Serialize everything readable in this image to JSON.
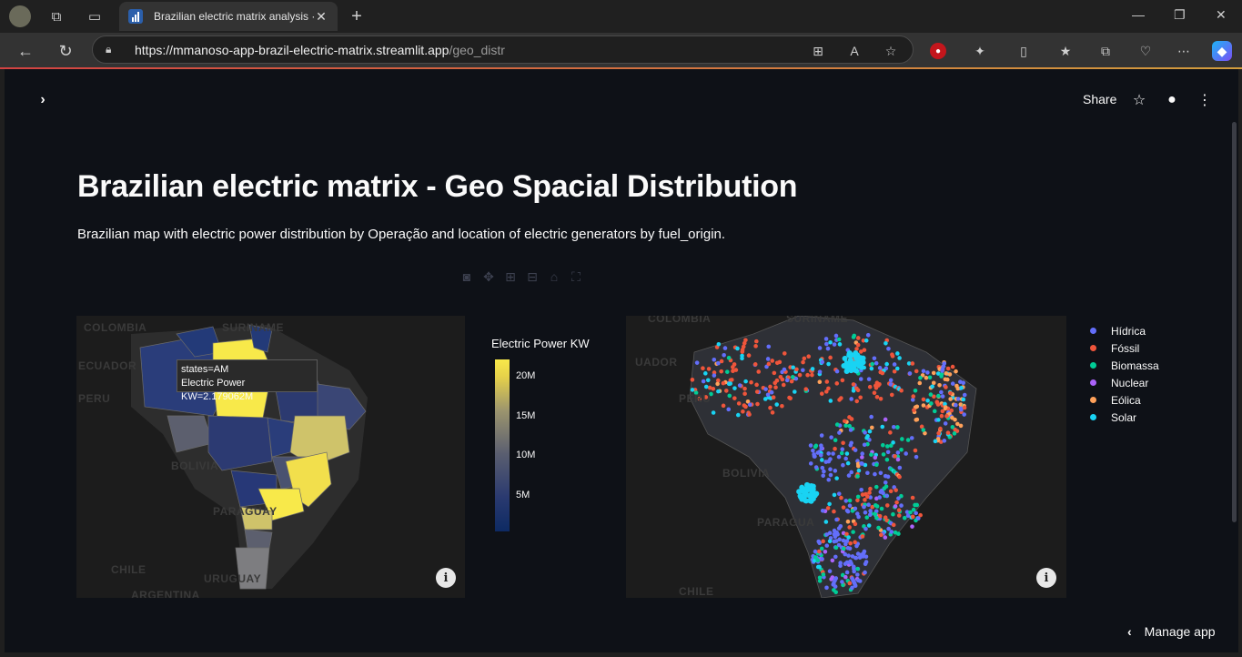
{
  "browser": {
    "tab_title": "Brazilian electric matrix analysis · S",
    "url_host": "https://mmanoso-app-brazil-electric-matrix.streamlit.app",
    "url_path": "/geo_distr"
  },
  "header": {
    "share_label": "Share"
  },
  "page": {
    "title": "Brazilian electric matrix - Geo Spacial Distribution",
    "subtitle": "Brazilian map with electric power distribution by Operação and location of electric generators by fuel_origin."
  },
  "map1": {
    "labels": [
      "COLOMBIA",
      "SURINAME",
      "ECUADOR",
      "PERU",
      "BOLIVIA",
      "PARAGUAY",
      "CHILE",
      "URUGUAY",
      "ARGENTINA"
    ],
    "tooltip_line1": "states=AM",
    "tooltip_line2": "Electric Power KW=2.179062M",
    "colorbar_title": "Electric Power KW",
    "colorbar_ticks": [
      "20M",
      "15M",
      "10M",
      "5M"
    ]
  },
  "map2": {
    "labels": [
      "COLOMBIA",
      "SURINAME",
      "UADOR",
      "PERU",
      "BOLIVIA",
      "PARAGUA",
      "CHILE"
    ],
    "legend": [
      {
        "name": "Hídrica",
        "color": "#636efa"
      },
      {
        "name": "Fóssil",
        "color": "#ef553b"
      },
      {
        "name": "Biomassa",
        "color": "#00cc96"
      },
      {
        "name": "Nuclear",
        "color": "#ab63fa"
      },
      {
        "name": "Eólica",
        "color": "#ffa15a"
      },
      {
        "name": "Solar",
        "color": "#19d3f3"
      }
    ]
  },
  "footer": {
    "manage_label": "Manage app"
  }
}
